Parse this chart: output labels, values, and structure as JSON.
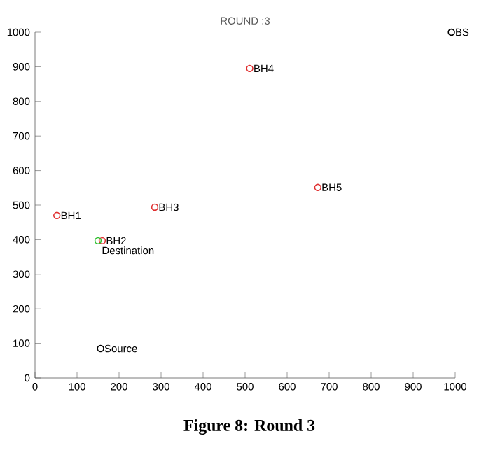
{
  "chart_data": {
    "type": "scatter",
    "title": "ROUND :3",
    "annotations": [
      "Figure 8: Round 3"
    ],
    "xlim": [
      0,
      1000
    ],
    "ylim": [
      0,
      1000
    ],
    "xticks": [
      0,
      100,
      200,
      300,
      400,
      500,
      600,
      700,
      800,
      900,
      1000
    ],
    "yticks": [
      0,
      100,
      200,
      300,
      400,
      500,
      600,
      700,
      800,
      900,
      1000
    ],
    "grid": false,
    "marker": "circle",
    "series": [
      {
        "name": "BH1",
        "color": "#e03030",
        "x": [
          52
        ],
        "values": [
          470
        ]
      },
      {
        "name": "BH2",
        "color": "#e03030",
        "x": [
          160
        ],
        "values": [
          397
        ]
      },
      {
        "name": "BH3",
        "color": "#e03030",
        "x": [
          285
        ],
        "values": [
          494
        ]
      },
      {
        "name": "BH4",
        "color": "#e03030",
        "x": [
          511
        ],
        "values": [
          895
        ]
      },
      {
        "name": "BH5",
        "color": "#e03030",
        "x": [
          673
        ],
        "values": [
          551
        ]
      },
      {
        "name": "Destination",
        "color": "#30c030",
        "x": [
          150
        ],
        "values": [
          397
        ]
      },
      {
        "name": "Source",
        "color": "#000000",
        "x": [
          156
        ],
        "values": [
          85
        ]
      },
      {
        "name": "BS",
        "color": "#000000",
        "x": [
          991
        ],
        "values": [
          1000
        ]
      }
    ]
  }
}
